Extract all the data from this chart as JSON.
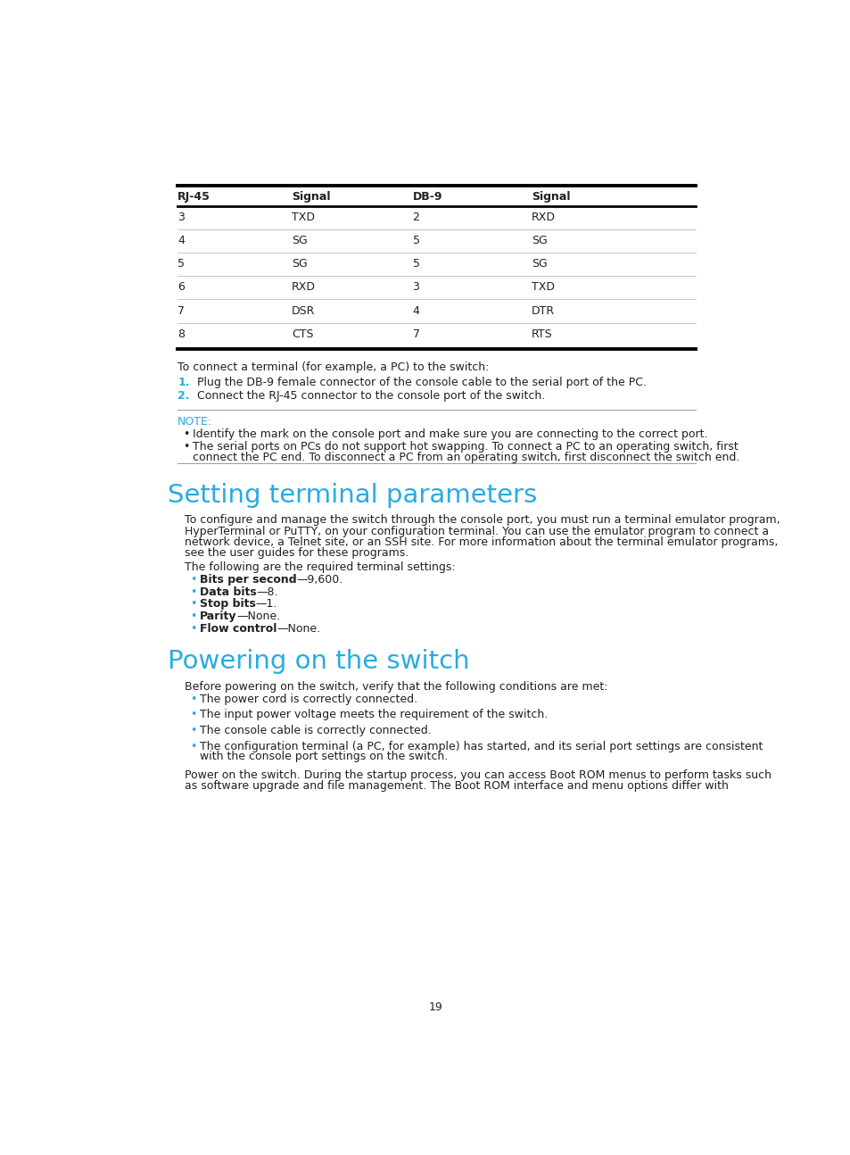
{
  "bg_color": "#ffffff",
  "text_color": "#231f20",
  "cyan_color": "#29abe2",
  "page_number": "19",
  "table": {
    "headers": [
      "RJ-45",
      "Signal",
      "DB-9",
      "Signal"
    ],
    "rows": [
      [
        "3",
        "TXD",
        "2",
        "RXD"
      ],
      [
        "4",
        "SG",
        "5",
        "SG"
      ],
      [
        "5",
        "SG",
        "5",
        "SG"
      ],
      [
        "6",
        "RXD",
        "3",
        "TXD"
      ],
      [
        "7",
        "DSR",
        "4",
        "DTR"
      ],
      [
        "8",
        "CTS",
        "7",
        "RTS"
      ]
    ]
  },
  "para1": "To connect a terminal (for example, a PC) to the switch:",
  "numbered_items": [
    "Plug the DB-9 female connector of the console cable to the serial port of the PC.",
    "Connect the RJ-45 connector to the console port of the switch."
  ],
  "note_label": "NOTE:",
  "note_bullet1": "Identify the mark on the console port and make sure you are connecting to the correct port.",
  "note_bullet2a": "The serial ports on PCs do not support hot swapping. To connect a PC to an operating switch, first",
  "note_bullet2b": "connect the PC end. To disconnect a PC from an operating switch, first disconnect the switch end.",
  "section1_title": "Setting terminal parameters",
  "section1_para_lines": [
    "To configure and manage the switch through the console port, you must run a terminal emulator program,",
    "HyperTerminal or PuTTY, on your configuration terminal. You can use the emulator program to connect a",
    "network device, a Telnet site, or an SSH site. For more information about the terminal emulator programs,",
    "see the user guides for these programs."
  ],
  "section1_sub": "The following are the required terminal settings:",
  "section1_bullets": [
    [
      "Bits per second",
      "—9,600."
    ],
    [
      "Data bits",
      "—8."
    ],
    [
      "Stop bits",
      "—1."
    ],
    [
      "Parity",
      "—None."
    ],
    [
      "Flow control",
      "—None."
    ]
  ],
  "section2_title": "Powering on the switch",
  "section2_para": "Before powering on the switch, verify that the following conditions are met:",
  "section2_bullets": [
    [
      "The power cord is correctly connected."
    ],
    [
      "The input power voltage meets the requirement of the switch."
    ],
    [
      "The console cable is correctly connected."
    ],
    [
      "The configuration terminal (a PC, for example) has started, and its serial port settings are consistent",
      "with the console port settings on the switch."
    ]
  ],
  "section2_para2a": "Power on the switch. During the startup process, you can access Boot ROM menus to perform tasks such",
  "section2_para2b": "as software upgrade and file management. The Boot ROM interface and menu options differ with"
}
